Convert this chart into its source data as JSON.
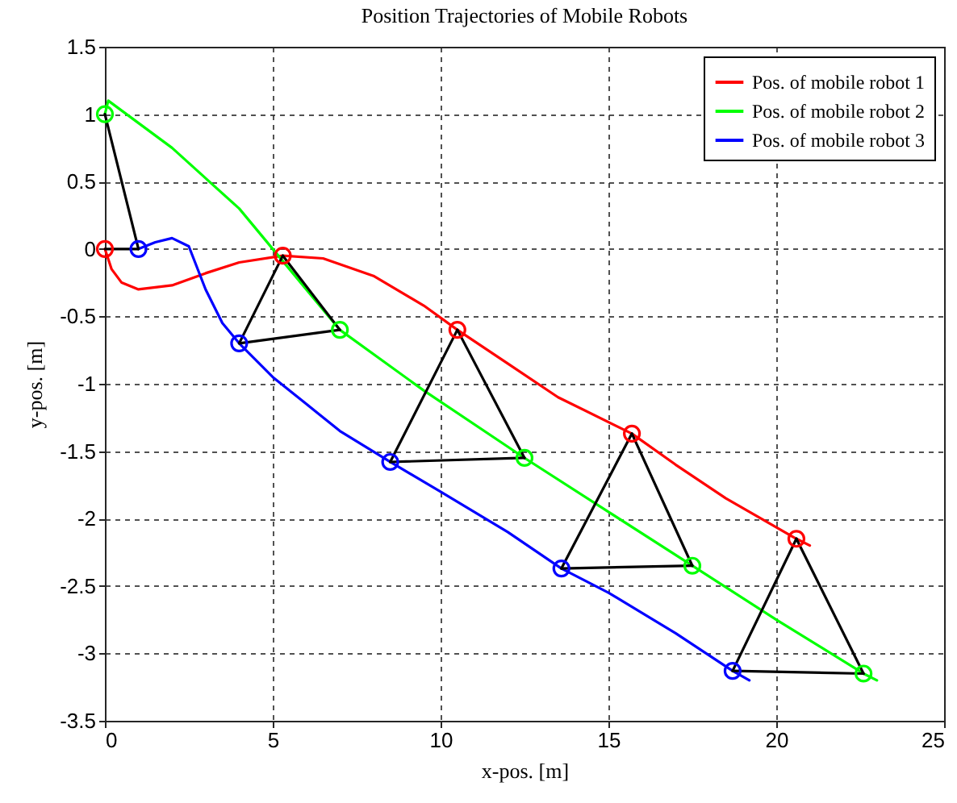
{
  "chart_data": {
    "type": "line",
    "title": "Position Trajectories of Mobile Robots",
    "xlabel": "x-pos. [m]",
    "ylabel": "y-pos. [m]",
    "xlim": [
      0,
      25
    ],
    "ylim": [
      -3.5,
      1.5
    ],
    "xticks": [
      0,
      5,
      10,
      15,
      20,
      25
    ],
    "yticks": [
      -3.5,
      -3,
      -2.5,
      -2,
      -1.5,
      -1,
      -0.5,
      0,
      0.5,
      1,
      1.5
    ],
    "grid": true,
    "legend": "top right",
    "series": [
      {
        "name": "Pos. of mobile robot 1",
        "color": "#ff0000",
        "x": [
          0,
          0.2,
          0.5,
          1,
          2,
          3,
          4,
          5.3,
          6.5,
          8,
          9.5,
          10.5,
          12,
          13.5,
          15.7,
          17,
          18.5,
          20.6,
          21
        ],
        "values": [
          0,
          -0.15,
          -0.25,
          -0.3,
          -0.27,
          -0.18,
          -0.1,
          -0.05,
          -0.07,
          -0.2,
          -0.42,
          -0.6,
          -0.85,
          -1.1,
          -1.37,
          -1.6,
          -1.85,
          -2.15,
          -2.2
        ]
      },
      {
        "name": "Pos. of mobile robot 2",
        "color": "#00ff00",
        "x": [
          0,
          0.1,
          2,
          4,
          7,
          9.5,
          12.5,
          15,
          17.5,
          20,
          22.6,
          23
        ],
        "values": [
          1,
          1.1,
          0.75,
          0.3,
          -0.6,
          -1.05,
          -1.55,
          -1.95,
          -2.35,
          -2.75,
          -3.15,
          -3.2
        ]
      },
      {
        "name": "Pos. of mobile robot 3",
        "color": "#0000ff",
        "x": [
          1,
          1.5,
          2,
          2.5,
          3,
          3.5,
          4,
          5,
          6,
          7,
          8.5,
          10,
          12,
          13.6,
          15,
          17,
          18.7,
          19.2
        ],
        "values": [
          0,
          0.05,
          0.08,
          0.02,
          -0.3,
          -0.55,
          -0.7,
          -0.95,
          -1.15,
          -1.35,
          -1.58,
          -1.8,
          -2.1,
          -2.37,
          -2.55,
          -2.85,
          -3.13,
          -3.2
        ]
      },
      {
        "type": "line",
        "color": "#000000",
        "x": [
          0,
          1
        ],
        "values": [
          0,
          0
        ]
      },
      {
        "type": "line",
        "color": "#000000",
        "x": [
          0,
          1
        ],
        "values": [
          1,
          0
        ]
      },
      {
        "type": "line",
        "color": "#000000",
        "x": [
          5.3,
          7
        ],
        "values": [
          -0.05,
          -0.6
        ]
      },
      {
        "type": "line",
        "color": "#000000",
        "x": [
          4,
          7
        ],
        "values": [
          -0.7,
          -0.6
        ]
      },
      {
        "type": "line",
        "color": "#000000",
        "x": [
          4,
          5.3
        ],
        "values": [
          -0.7,
          -0.05
        ]
      },
      {
        "type": "line",
        "color": "#000000",
        "x": [
          10.5,
          12.5
        ],
        "values": [
          -0.6,
          -1.55
        ]
      },
      {
        "type": "line",
        "color": "#000000",
        "x": [
          8.5,
          12.5
        ],
        "values": [
          -1.58,
          -1.55
        ]
      },
      {
        "type": "line",
        "color": "#000000",
        "x": [
          8.5,
          10.5
        ],
        "values": [
          -1.58,
          -0.6
        ]
      },
      {
        "type": "line",
        "color": "#000000",
        "x": [
          15.7,
          17.5
        ],
        "values": [
          -1.37,
          -2.35
        ]
      },
      {
        "type": "line",
        "color": "#000000",
        "x": [
          13.6,
          17.5
        ],
        "values": [
          -2.37,
          -2.35
        ]
      },
      {
        "type": "line",
        "color": "#000000",
        "x": [
          13.6,
          15.7
        ],
        "values": [
          -2.37,
          -1.37
        ]
      },
      {
        "type": "line",
        "color": "#000000",
        "x": [
          20.6,
          22.6
        ],
        "values": [
          -2.15,
          -3.15
        ]
      },
      {
        "type": "line",
        "color": "#000000",
        "x": [
          18.7,
          22.6
        ],
        "values": [
          -3.13,
          -3.15
        ]
      },
      {
        "type": "line",
        "color": "#000000",
        "x": [
          18.7,
          20.6
        ],
        "values": [
          -3.13,
          -2.15
        ]
      },
      {
        "type": "scatter",
        "marker": "circle",
        "color": "#ff0000",
        "x": [
          0,
          5.3,
          10.5,
          15.7,
          20.6
        ],
        "values": [
          0,
          -0.05,
          -0.6,
          -1.37,
          -2.15
        ]
      },
      {
        "type": "scatter",
        "marker": "circle",
        "color": "#00ff00",
        "x": [
          0,
          7,
          12.5,
          17.5,
          22.6
        ],
        "values": [
          1,
          -0.6,
          -1.55,
          -2.35,
          -3.15
        ]
      },
      {
        "type": "scatter",
        "marker": "circle",
        "color": "#0000ff",
        "x": [
          1,
          4,
          8.5,
          13.6,
          18.7
        ],
        "values": [
          0,
          -0.7,
          -1.58,
          -2.37,
          -3.13
        ]
      }
    ]
  }
}
